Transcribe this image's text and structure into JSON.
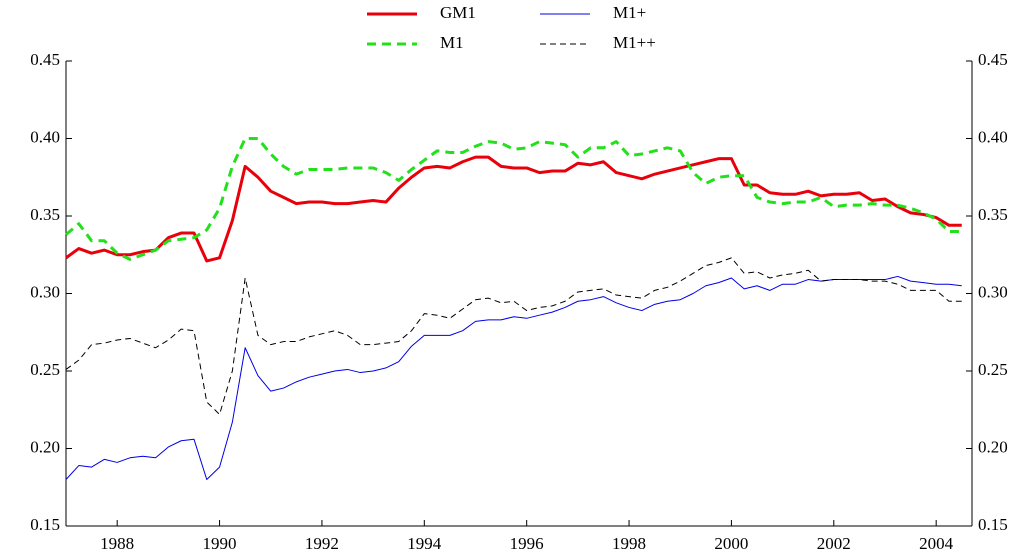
{
  "chart_data": {
    "type": "line",
    "x": [
      1987,
      1987.25,
      1987.5,
      1987.75,
      1988,
      1988.25,
      1988.5,
      1988.75,
      1989,
      1989.25,
      1989.5,
      1989.75,
      1990,
      1990.25,
      1990.5,
      1990.75,
      1991,
      1991.25,
      1991.5,
      1991.75,
      1992,
      1992.25,
      1992.5,
      1992.75,
      1993,
      1993.25,
      1993.5,
      1993.75,
      1994,
      1994.25,
      1994.5,
      1994.75,
      1995,
      1995.25,
      1995.5,
      1995.75,
      1996,
      1996.25,
      1996.5,
      1996.75,
      1997,
      1997.25,
      1997.5,
      1997.75,
      1998,
      1998.25,
      1998.5,
      1998.75,
      1999,
      1999.25,
      1999.5,
      1999.75,
      2000,
      2000.25,
      2000.5,
      2000.75,
      2001,
      2001.25,
      2001.5,
      2001.75,
      2002,
      2002.25,
      2002.5,
      2002.75,
      2003,
      2003.25,
      2003.5,
      2003.75,
      2004,
      2004.25,
      2004.5
    ],
    "series": [
      {
        "name": "GM1",
        "color": "#e8000b",
        "linestyle": "solid",
        "linewidth": 3,
        "values": [
          0.323,
          0.329,
          0.326,
          0.328,
          0.325,
          0.325,
          0.327,
          0.328,
          0.336,
          0.339,
          0.339,
          0.321,
          0.323,
          0.347,
          0.382,
          0.375,
          0.366,
          0.362,
          0.358,
          0.359,
          0.359,
          0.358,
          0.358,
          0.359,
          0.36,
          0.359,
          0.368,
          0.375,
          0.381,
          0.382,
          0.381,
          0.385,
          0.388,
          0.388,
          0.382,
          0.381,
          0.381,
          0.378,
          0.379,
          0.379,
          0.384,
          0.383,
          0.385,
          0.378,
          0.376,
          0.374,
          0.377,
          0.379,
          0.381,
          0.383,
          0.385,
          0.387,
          0.387,
          0.37,
          0.37,
          0.365,
          0.364,
          0.364,
          0.366,
          0.363,
          0.364,
          0.364,
          0.365,
          0.36,
          0.361,
          0.356,
          0.352,
          0.351,
          0.349,
          0.344,
          0.344
        ]
      },
      {
        "name": "M1+",
        "color": "#0000e6",
        "linestyle": "solid",
        "linewidth": 1,
        "values": [
          0.18,
          0.189,
          0.188,
          0.193,
          0.191,
          0.194,
          0.195,
          0.194,
          0.201,
          0.205,
          0.206,
          0.18,
          0.188,
          0.217,
          0.265,
          0.247,
          0.237,
          0.239,
          0.243,
          0.246,
          0.248,
          0.25,
          0.251,
          0.249,
          0.25,
          0.252,
          0.256,
          0.266,
          0.273,
          0.273,
          0.273,
          0.276,
          0.282,
          0.283,
          0.283,
          0.285,
          0.284,
          0.286,
          0.288,
          0.291,
          0.295,
          0.296,
          0.298,
          0.294,
          0.291,
          0.289,
          0.293,
          0.295,
          0.296,
          0.3,
          0.305,
          0.307,
          0.31,
          0.303,
          0.305,
          0.302,
          0.306,
          0.306,
          0.309,
          0.308,
          0.309,
          0.309,
          0.309,
          0.309,
          0.309,
          0.311,
          0.308,
          0.307,
          0.306,
          0.306,
          0.305
        ]
      },
      {
        "name": "M1",
        "color": "#22e01a",
        "linestyle": "dashed",
        "linewidth": 3,
        "values": [
          0.338,
          0.345,
          0.334,
          0.334,
          0.326,
          0.322,
          0.325,
          0.328,
          0.334,
          0.335,
          0.336,
          0.341,
          0.355,
          0.382,
          0.4,
          0.4,
          0.39,
          0.382,
          0.377,
          0.38,
          0.38,
          0.38,
          0.381,
          0.381,
          0.381,
          0.378,
          0.373,
          0.38,
          0.386,
          0.392,
          0.391,
          0.391,
          0.395,
          0.398,
          0.397,
          0.393,
          0.394,
          0.398,
          0.397,
          0.396,
          0.388,
          0.394,
          0.394,
          0.398,
          0.389,
          0.39,
          0.392,
          0.394,
          0.392,
          0.378,
          0.371,
          0.375,
          0.376,
          0.376,
          0.362,
          0.359,
          0.358,
          0.359,
          0.359,
          0.362,
          0.356,
          0.357,
          0.357,
          0.358,
          0.357,
          0.357,
          0.355,
          0.352,
          0.348,
          0.34,
          0.34
        ]
      },
      {
        "name": "M1++",
        "color": "#000000",
        "linestyle": "dashed",
        "linewidth": 1,
        "values": [
          0.251,
          0.257,
          0.267,
          0.268,
          0.27,
          0.271,
          0.268,
          0.265,
          0.27,
          0.277,
          0.276,
          0.23,
          0.222,
          0.25,
          0.31,
          0.273,
          0.267,
          0.269,
          0.269,
          0.272,
          0.274,
          0.276,
          0.273,
          0.267,
          0.267,
          0.268,
          0.269,
          0.276,
          0.287,
          0.286,
          0.284,
          0.29,
          0.296,
          0.297,
          0.294,
          0.295,
          0.289,
          0.291,
          0.292,
          0.295,
          0.301,
          0.302,
          0.303,
          0.299,
          0.298,
          0.297,
          0.302,
          0.304,
          0.308,
          0.313,
          0.318,
          0.32,
          0.323,
          0.313,
          0.314,
          0.31,
          0.312,
          0.313,
          0.315,
          0.308,
          0.309,
          0.309,
          0.309,
          0.308,
          0.308,
          0.306,
          0.302,
          0.302,
          0.302,
          0.295,
          0.295
        ]
      }
    ],
    "xlim": [
      1987,
      2004.7
    ],
    "xticks": [
      1988,
      1990,
      1992,
      1994,
      1996,
      1998,
      2000,
      2002,
      2004
    ],
    "ylim": [
      0.15,
      0.45
    ],
    "yticks": [
      {
        "value": 0.15,
        "label": "0.15"
      },
      {
        "value": 0.2,
        "label": "0.20"
      },
      {
        "value": 0.25,
        "label": "0.25"
      },
      {
        "value": 0.3,
        "label": "0.30"
      },
      {
        "value": 0.35,
        "label": "0.35"
      },
      {
        "value": 0.4,
        "label": "0.40"
      },
      {
        "value": 0.45,
        "label": "0.45"
      }
    ],
    "y2lim": [
      0.15,
      0.45
    ],
    "y2ticks": [
      {
        "value": 0.15,
        "label": "0.15"
      },
      {
        "value": 0.2,
        "label": "0.20"
      },
      {
        "value": 0.25,
        "label": "0.25"
      },
      {
        "value": 0.3,
        "label": "0.30"
      },
      {
        "value": 0.35,
        "label": "0.35"
      },
      {
        "value": 0.4,
        "label": "0.40"
      },
      {
        "value": 0.45,
        "label": "0.45"
      }
    ],
    "legend": "top"
  }
}
